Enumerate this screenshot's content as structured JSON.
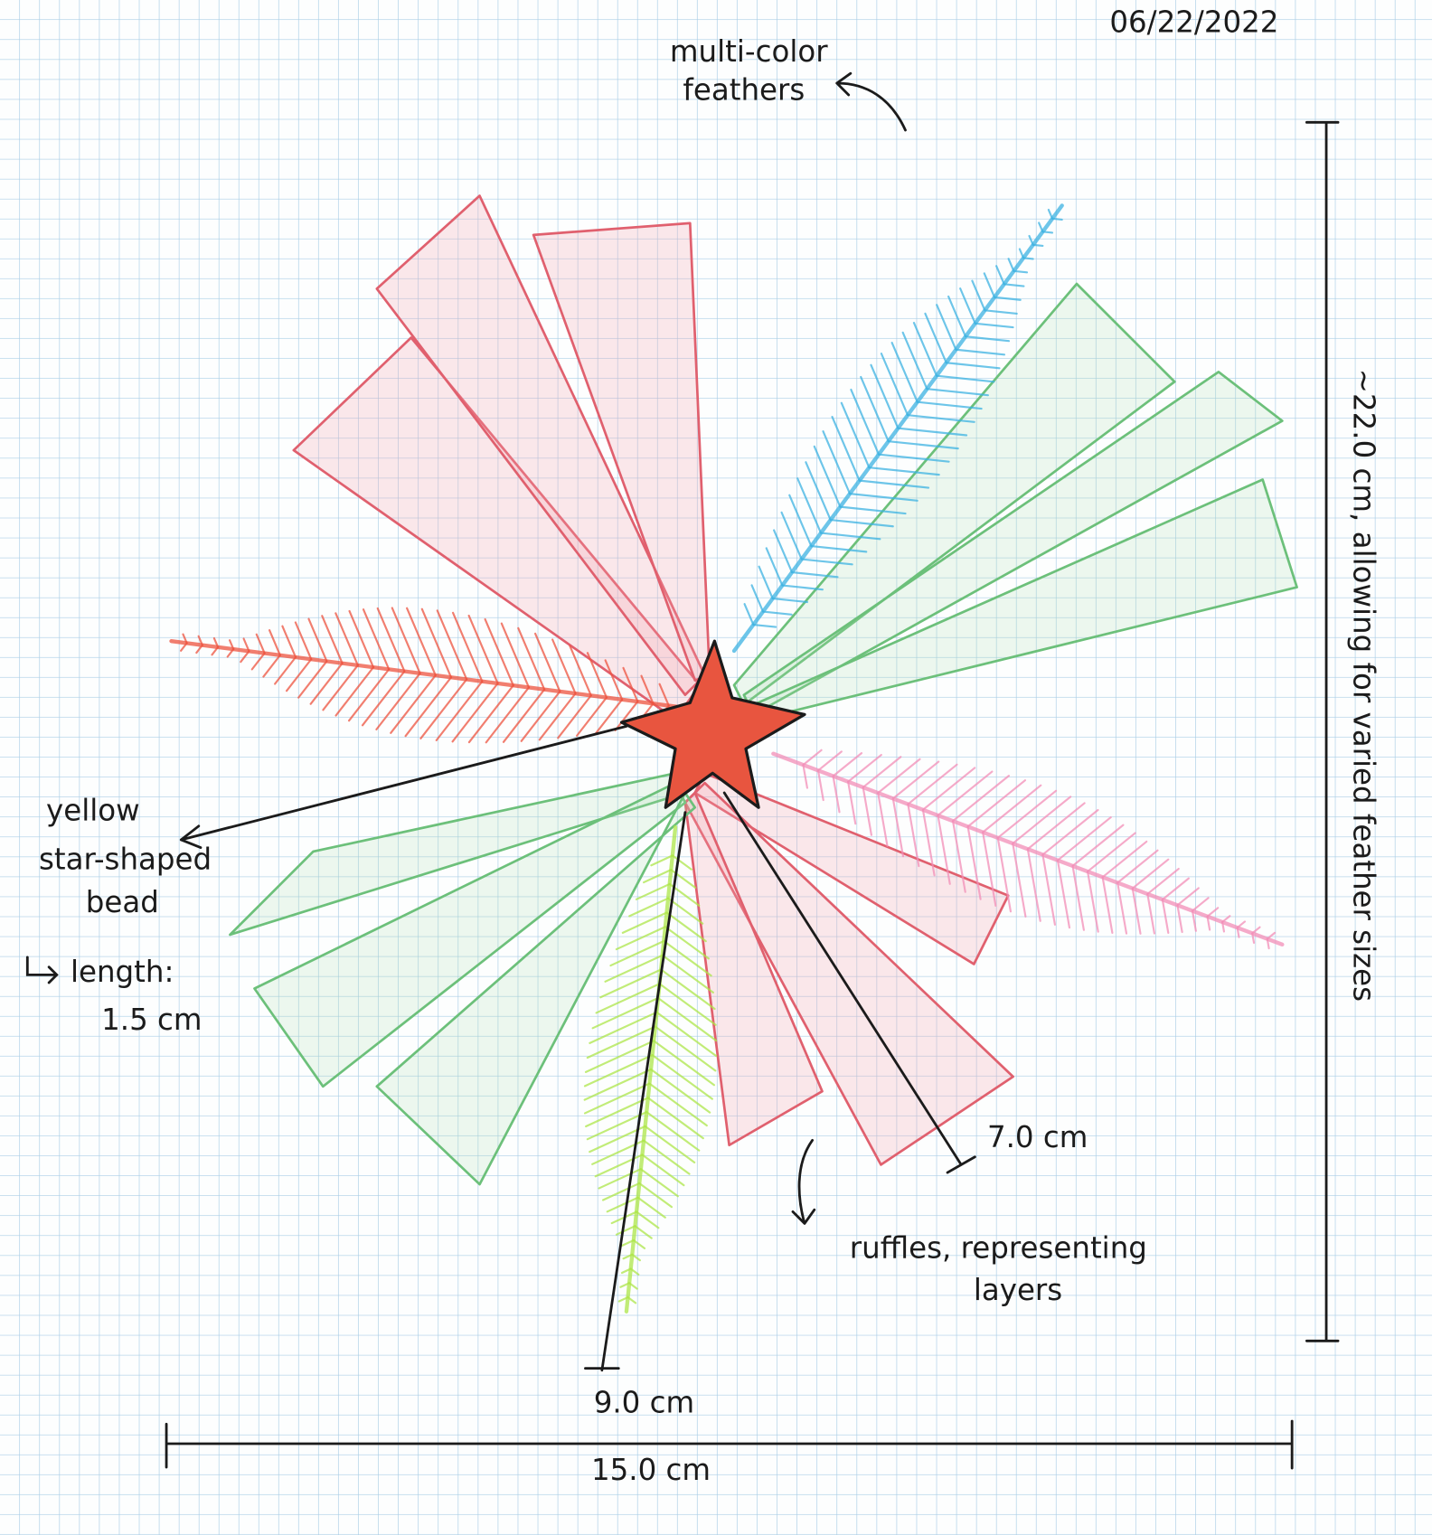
{
  "date": "06/22/2022",
  "feathers_label": [
    "multi-color",
    "feathers"
  ],
  "height_label": "~22.0 cm, allowing for varied feather sizes",
  "bead_label": [
    "yellow",
    "star-shaped",
    "bead"
  ],
  "bead_length": [
    "length:",
    "1.5 cm"
  ],
  "ruffle_length": "7.0 cm",
  "ruffles_label": [
    "ruffles, representing",
    "layers"
  ],
  "feather_length": "9.0 cm",
  "width_label": "15.0 cm"
}
